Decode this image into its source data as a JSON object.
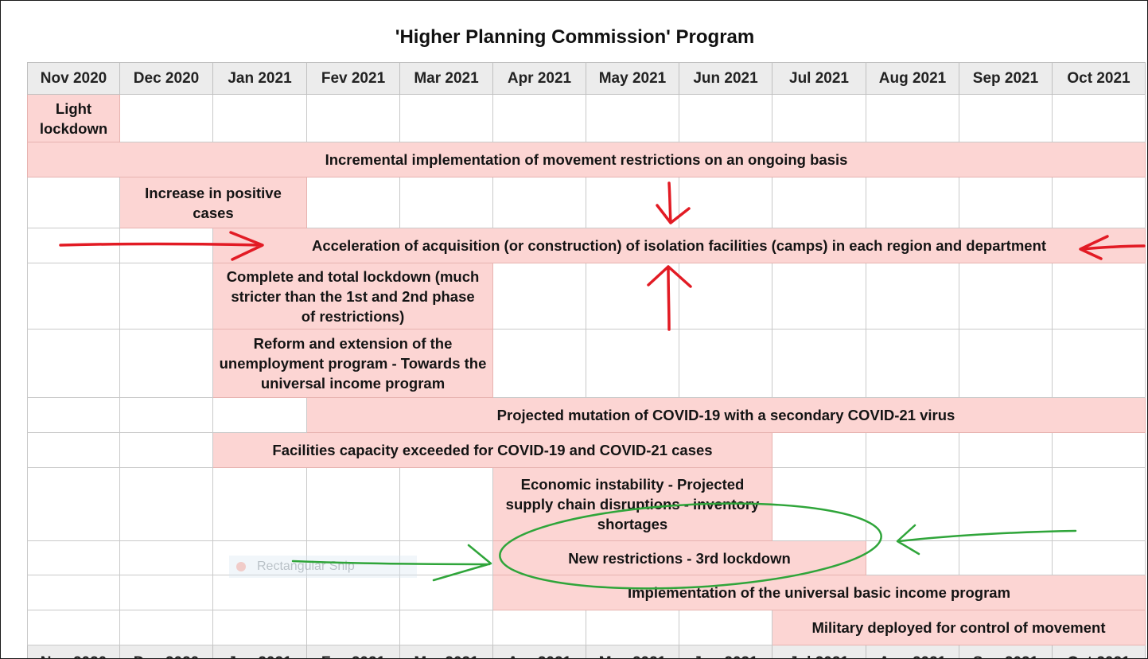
{
  "title": "'Higher Planning Commission' Program",
  "months": [
    "Nov 2020",
    "Dec 2020",
    "Jan 2021",
    "Fev 2021",
    "Mar 2021",
    "Apr 2021",
    "May 2021",
    "Jun 2021",
    "Jul 2021",
    "Aug 2021",
    "Sep 2021",
    "Oct 2021"
  ],
  "events": [
    {
      "label": "Light lockdown"
    },
    {
      "label": "Incremental implementation of movement restrictions on an ongoing basis"
    },
    {
      "label": "Increase in positive cases"
    },
    {
      "label": "Acceleration of acquisition (or construction) of isolation facilities (camps) in each region and department"
    },
    {
      "label": "Complete and total lockdown (much stricter than the 1st and 2nd phase of restrictions)"
    },
    {
      "label": "Reform and extension of the unemployment program - Towards the universal income program"
    },
    {
      "label": "Projected mutation of COVID-19 with a secondary COVID-21 virus"
    },
    {
      "label": "Facilities capacity exceeded for COVID-19 and COVID-21 cases"
    },
    {
      "label": "Economic instability - Projected supply chain disruptions - inventory shortages"
    },
    {
      "label": "New restrictions - 3rd lockdown"
    },
    {
      "label": "Implementation of the universal basic income program"
    },
    {
      "label": "Military deployed for control of movement"
    }
  ],
  "ghost_label": "Rectangular Snip",
  "annotation_colors": {
    "red": "#e21b24",
    "green": "#2fa53a"
  }
}
